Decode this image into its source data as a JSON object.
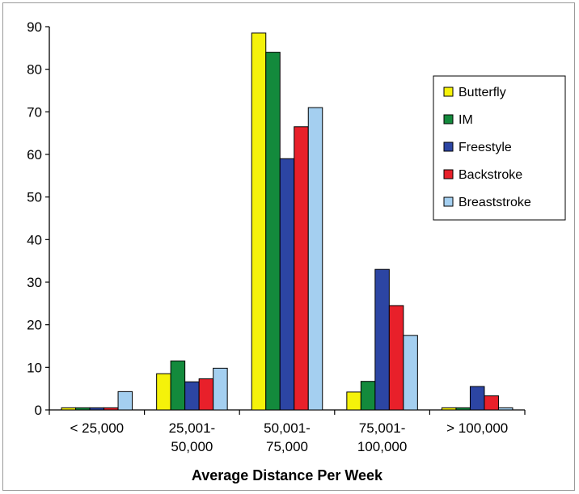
{
  "chart_data": {
    "type": "bar",
    "title": "",
    "xlabel": "Average Distance Per Week",
    "ylabel": "",
    "ylim": [
      0,
      90
    ],
    "yticks": [
      0,
      10,
      20,
      30,
      40,
      50,
      60,
      70,
      80,
      90
    ],
    "grid": false,
    "legend_position": "right",
    "categories": [
      [
        "< 25,000"
      ],
      [
        "25,001-",
        "50,000"
      ],
      [
        "50,001-",
        "75,000"
      ],
      [
        "75,001-",
        "100,000"
      ],
      [
        "> 100,000"
      ]
    ],
    "series": [
      {
        "name": "Butterfly",
        "color": "#f5f20a",
        "values": [
          0.5,
          8.5,
          88.5,
          4.2,
          0.5
        ]
      },
      {
        "name": "IM",
        "color": "#138a3c",
        "values": [
          0.5,
          11.5,
          84,
          6.7,
          0.5
        ]
      },
      {
        "name": "Freestyle",
        "color": "#2c45a3",
        "values": [
          0.5,
          6.6,
          59,
          33,
          5.5
        ]
      },
      {
        "name": "Backstroke",
        "color": "#e8202a",
        "values": [
          0.5,
          7.3,
          66.5,
          24.5,
          3.3
        ]
      },
      {
        "name": "Breaststroke",
        "color": "#a4cff0",
        "values": [
          4.3,
          9.8,
          71,
          17.5,
          0.5
        ]
      }
    ]
  }
}
